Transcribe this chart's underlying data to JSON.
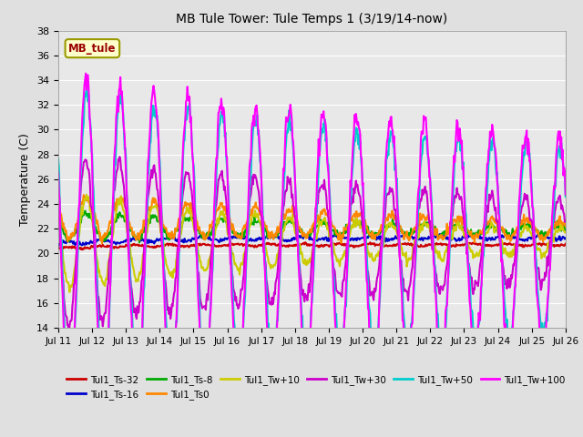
{
  "title": "MB Tule Tower: Tule Temps 1 (3/19/14-now)",
  "ylabel": "Temperature (C)",
  "ylim": [
    14,
    38
  ],
  "yticks": [
    14,
    16,
    18,
    20,
    22,
    24,
    26,
    28,
    30,
    32,
    34,
    36,
    38
  ],
  "xtick_labels": [
    "Jul 11",
    "Jul 12",
    "Jul 13",
    "Jul 14",
    "Jul 15",
    "Jul 16",
    "Jul 17",
    "Jul 18",
    "Jul 19",
    "Jul 20",
    "Jul 21",
    "Jul 22",
    "Jul 23",
    "Jul 24",
    "Jul 25",
    "Jul 26"
  ],
  "background_color": "#e0e0e0",
  "plot_bg_color": "#e8e8e8",
  "grid_color": "#ffffff",
  "legend_box_label": "MB_tule",
  "legend_box_facecolor": "#ffffcc",
  "legend_box_edgecolor": "#999900",
  "legend_box_textcolor": "#990000",
  "series": [
    {
      "label": "Tul1_Ts-32",
      "color": "#cc0000",
      "lw": 1.5
    },
    {
      "label": "Tul1_Ts-16",
      "color": "#0000cc",
      "lw": 1.5
    },
    {
      "label": "Tul1_Ts-8",
      "color": "#00aa00",
      "lw": 1.5
    },
    {
      "label": "Tul1_Ts0",
      "color": "#ff8800",
      "lw": 1.5
    },
    {
      "label": "Tul1_Tw+10",
      "color": "#cccc00",
      "lw": 1.5
    },
    {
      "label": "Tul1_Tw+30",
      "color": "#cc00cc",
      "lw": 1.5
    },
    {
      "label": "Tul1_Tw+50",
      "color": "#00cccc",
      "lw": 1.5
    },
    {
      "label": "Tul1_Tw+100",
      "color": "#ff00ff",
      "lw": 1.5
    }
  ]
}
